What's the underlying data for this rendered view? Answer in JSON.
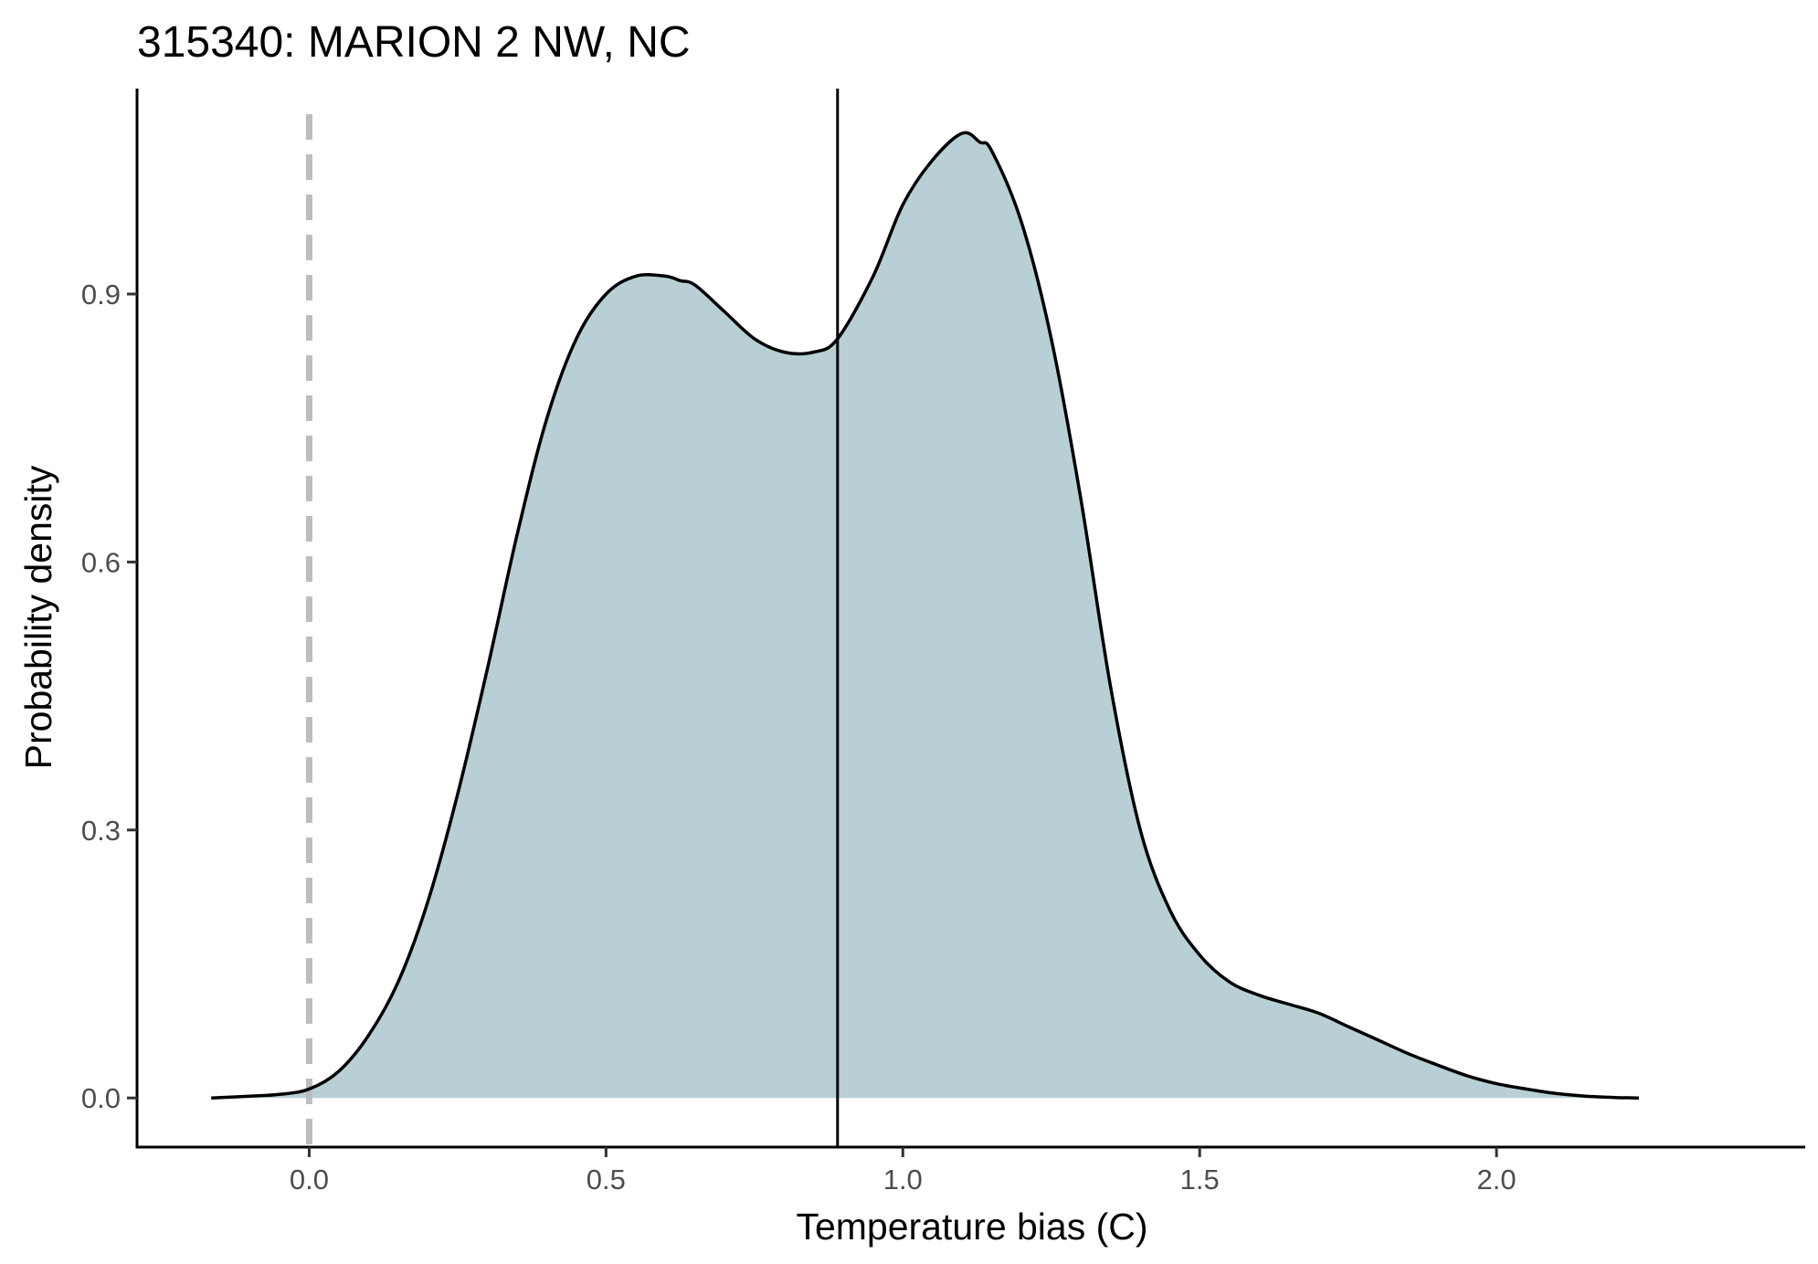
{
  "chart_data": {
    "type": "area",
    "title": "315340: MARION 2 NW, NC",
    "xlabel": "Temperature bias (C)",
    "ylabel": "Probability density",
    "xlim": [
      -0.29,
      2.52
    ],
    "ylim": [
      -0.055,
      1.13
    ],
    "x_ticks": [
      0.0,
      0.5,
      1.0,
      1.5,
      2.0
    ],
    "x_tick_labels": [
      "0.0",
      "0.5",
      "1.0",
      "1.5",
      "2.0"
    ],
    "y_ticks": [
      0.0,
      0.3,
      0.6,
      0.9
    ],
    "y_tick_labels": [
      "0.0",
      "0.3",
      "0.6",
      "0.9"
    ],
    "grid": false,
    "fill_color": "#b8cfd5",
    "line_color": "#000000",
    "reference_line": {
      "x": 0.0,
      "style": "dashed",
      "color": "#bdbdbd"
    },
    "mean_line": {
      "x": 0.89,
      "style": "solid",
      "color": "#000000"
    },
    "density": {
      "x": [
        -0.165,
        -0.1,
        -0.05,
        0.0,
        0.05,
        0.1,
        0.15,
        0.2,
        0.25,
        0.3,
        0.35,
        0.4,
        0.45,
        0.5,
        0.55,
        0.6,
        0.625,
        0.65,
        0.7,
        0.75,
        0.8,
        0.85,
        0.89,
        0.95,
        1.0,
        1.05,
        1.1,
        1.13,
        1.15,
        1.2,
        1.25,
        1.3,
        1.35,
        1.4,
        1.45,
        1.5,
        1.55,
        1.6,
        1.65,
        1.7,
        1.75,
        1.8,
        1.85,
        1.9,
        1.95,
        2.0,
        2.05,
        2.1,
        2.15,
        2.2,
        2.24
      ],
      "y": [
        0.0,
        0.002,
        0.004,
        0.01,
        0.03,
        0.07,
        0.13,
        0.22,
        0.34,
        0.48,
        0.63,
        0.76,
        0.85,
        0.9,
        0.92,
        0.92,
        0.915,
        0.91,
        0.88,
        0.85,
        0.835,
        0.835,
        0.85,
        0.92,
        1.0,
        1.05,
        1.08,
        1.07,
        1.06,
        0.98,
        0.85,
        0.67,
        0.46,
        0.3,
        0.21,
        0.16,
        0.13,
        0.115,
        0.105,
        0.095,
        0.08,
        0.065,
        0.05,
        0.037,
        0.025,
        0.016,
        0.01,
        0.005,
        0.002,
        0.0005,
        0.0
      ]
    }
  }
}
